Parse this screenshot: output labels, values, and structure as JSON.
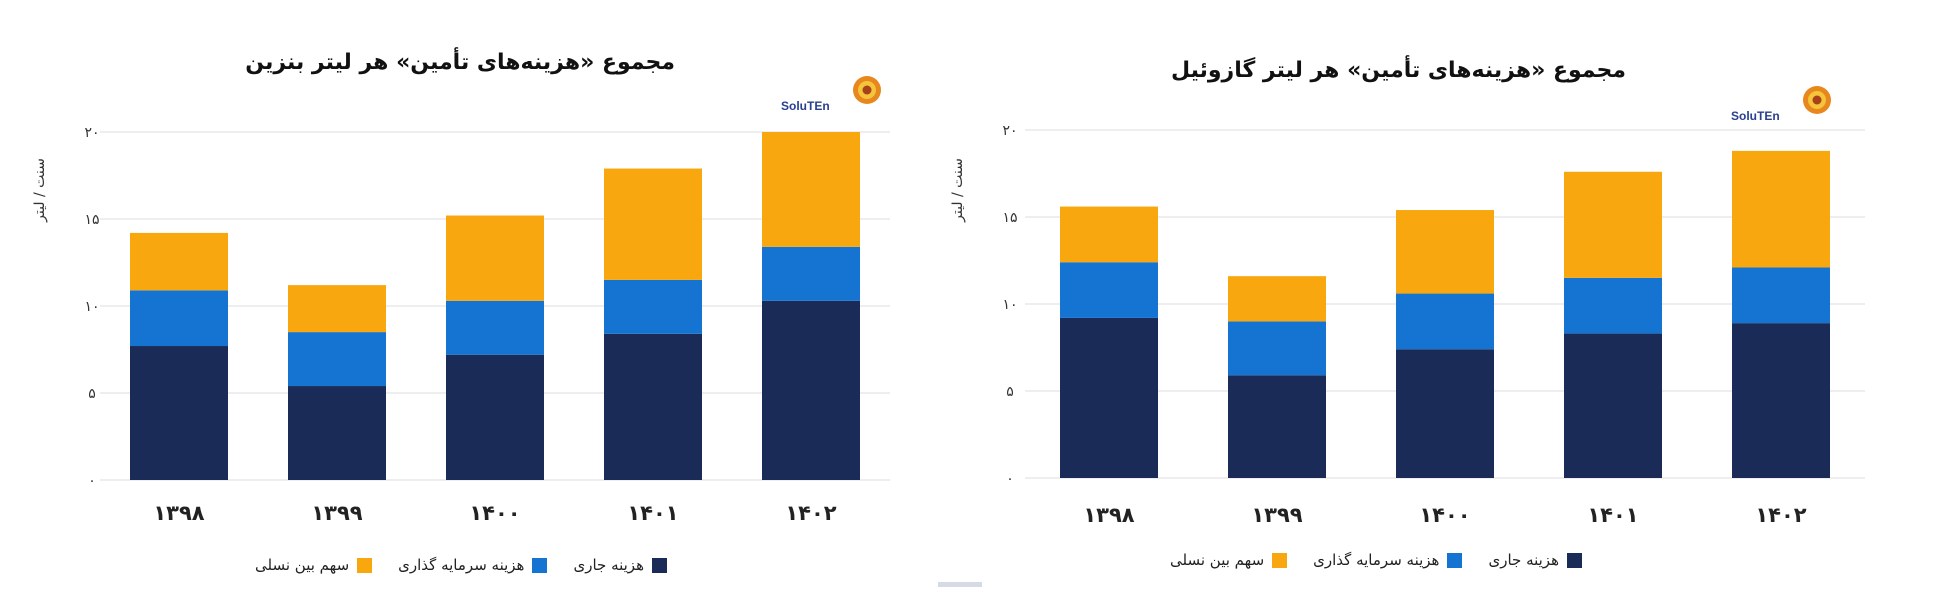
{
  "charts": [
    {
      "id": "left",
      "logo": {
        "brand": "SoluTEn",
        "icon": "sunflower-emblem-icon",
        "brand_color": "#2a3f8f"
      },
      "chart_data": {
        "type": "bar",
        "stacked": true,
        "title": "مجموع «هزینه‌های تأمین» هر لیتر بنزین",
        "xlabel": "",
        "ylabel": "سنت / لیتر",
        "categories": [
          "۱۳۹۸",
          "۱۳۹۹",
          "۱۴۰۰",
          "۱۴۰۱",
          "۱۴۰۲"
        ],
        "ylim": [
          0,
          20
        ],
        "yticks": [
          0,
          5,
          10,
          15,
          20
        ],
        "ytick_labels": [
          "۰",
          "۵",
          "۱۰",
          "۱۵",
          "۲۰"
        ],
        "grid": true,
        "legend_position": "bottom",
        "series": [
          {
            "name": "هزینه جاری",
            "color": "#1b2b57",
            "values": [
              7.7,
              5.4,
              7.2,
              8.4,
              10.3
            ]
          },
          {
            "name": "هزینه سرمایه گذاری",
            "color": "#1574d2",
            "values": [
              3.2,
              3.1,
              3.1,
              3.1,
              3.1
            ]
          },
          {
            "name": "سهم بین نسلی",
            "color": "#f9a70f",
            "values": [
              3.3,
              2.7,
              4.9,
              6.4,
              6.6
            ]
          }
        ]
      }
    },
    {
      "id": "right",
      "logo": {
        "brand": "SoluTEn",
        "icon": "sunflower-emblem-icon",
        "brand_color": "#2a3f8f"
      },
      "chart_data": {
        "type": "bar",
        "stacked": true,
        "title": "مجموع «هزینه‌های تأمین» هر لیتر گازوئیل",
        "xlabel": "",
        "ylabel": "سنت / لیتر",
        "categories": [
          "۱۳۹۸",
          "۱۳۹۹",
          "۱۴۰۰",
          "۱۴۰۱",
          "۱۴۰۲"
        ],
        "ylim": [
          0,
          20
        ],
        "yticks": [
          0,
          5,
          10,
          15,
          20
        ],
        "ytick_labels": [
          "۰",
          "۵",
          "۱۰",
          "۱۵",
          "۲۰"
        ],
        "grid": true,
        "legend_position": "bottom",
        "series": [
          {
            "name": "هزینه جاری",
            "color": "#1b2b57",
            "values": [
              9.2,
              5.9,
              7.4,
              8.3,
              8.9
            ]
          },
          {
            "name": "هزینه سرمایه گذاری",
            "color": "#1574d2",
            "values": [
              3.2,
              3.1,
              3.2,
              3.2,
              3.2
            ]
          },
          {
            "name": "سهم بین نسلی",
            "color": "#f9a70f",
            "values": [
              3.2,
              2.6,
              4.8,
              6.1,
              6.7
            ]
          }
        ]
      }
    }
  ]
}
